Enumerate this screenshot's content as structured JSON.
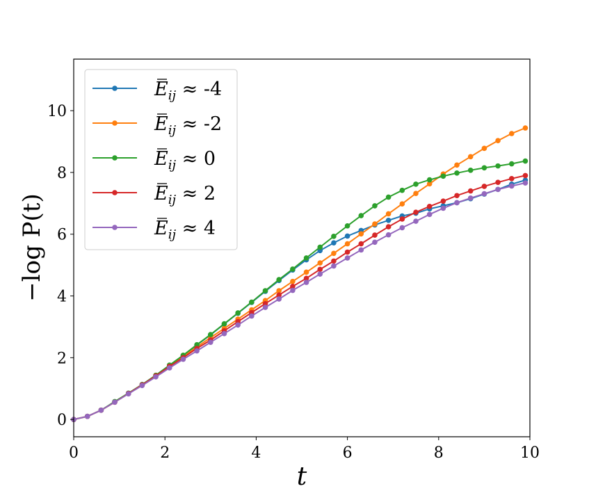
{
  "chart_data": {
    "type": "line",
    "title": "",
    "xlabel": "t",
    "ylabel": "−log P(t)",
    "xlim": [
      0,
      10
    ],
    "ylim": [
      -0.56,
      11.67
    ],
    "xticks": [
      0,
      2,
      4,
      6,
      8,
      10
    ],
    "yticks": [
      0,
      2,
      4,
      6,
      8,
      10
    ],
    "grid": false,
    "legend_placement": "upper-left",
    "marker": "circle",
    "x": [
      0,
      0.3,
      0.6,
      0.9,
      1.2,
      1.5,
      1.8,
      2.1,
      2.4,
      2.7,
      3.0,
      3.3,
      3.6,
      3.9,
      4.2,
      4.5,
      4.8,
      5.1,
      5.4,
      5.7,
      6.0,
      6.3,
      6.6,
      6.9,
      7.2,
      7.5,
      7.8,
      8.1,
      8.4,
      8.7,
      9.0,
      9.3,
      9.6,
      9.9
    ],
    "series": [
      {
        "name": "Ē_ij ≈ -4",
        "base": "E",
        "sub": "ij",
        "suffix": " ≈ -4",
        "color": "#1f77b4",
        "values": [
          0,
          0.1,
          0.3,
          0.57,
          0.85,
          1.13,
          1.43,
          1.75,
          2.07,
          2.41,
          2.74,
          3.09,
          3.44,
          3.79,
          4.15,
          4.5,
          4.84,
          5.17,
          5.47,
          5.72,
          5.94,
          6.12,
          6.3,
          6.45,
          6.59,
          6.68,
          6.82,
          6.92,
          7.02,
          7.15,
          7.3,
          7.45,
          7.62,
          7.75
        ]
      },
      {
        "name": "Ē_ij ≈ -2",
        "base": "E",
        "sub": "ij",
        "suffix": " ≈ -2",
        "color": "#ff7f0e",
        "values": [
          0,
          0.1,
          0.3,
          0.56,
          0.84,
          1.12,
          1.43,
          1.73,
          2.03,
          2.35,
          2.65,
          2.95,
          3.25,
          3.55,
          3.85,
          4.17,
          4.47,
          4.77,
          5.07,
          5.38,
          5.69,
          6.01,
          6.33,
          6.66,
          6.98,
          7.32,
          7.63,
          7.95,
          8.24,
          8.51,
          8.78,
          9.03,
          9.26,
          9.44
        ]
      },
      {
        "name": "Ē_ij ≈ 0",
        "base": "E",
        "sub": "ij",
        "suffix": " ≈ 0",
        "color": "#2ca02c",
        "values": [
          0,
          0.1,
          0.3,
          0.58,
          0.85,
          1.13,
          1.43,
          1.76,
          2.08,
          2.42,
          2.75,
          3.1,
          3.45,
          3.8,
          4.17,
          4.53,
          4.87,
          5.23,
          5.58,
          5.93,
          6.27,
          6.6,
          6.92,
          7.2,
          7.42,
          7.62,
          7.76,
          7.88,
          7.98,
          8.07,
          8.15,
          8.21,
          8.28,
          8.37
        ]
      },
      {
        "name": "Ē_ij ≈ 2",
        "base": "E",
        "sub": "ij",
        "suffix": " ≈ 2",
        "color": "#d62728",
        "values": [
          0,
          0.1,
          0.3,
          0.56,
          0.84,
          1.12,
          1.41,
          1.72,
          2.0,
          2.3,
          2.57,
          2.87,
          3.17,
          3.46,
          3.75,
          4.03,
          4.31,
          4.57,
          4.86,
          5.13,
          5.42,
          5.69,
          5.97,
          6.24,
          6.49,
          6.71,
          6.9,
          7.07,
          7.25,
          7.4,
          7.55,
          7.68,
          7.8,
          7.9
        ]
      },
      {
        "name": "Ē_ij ≈ 4",
        "base": "E",
        "sub": "ij",
        "suffix": " ≈ 4",
        "color": "#9467bd",
        "values": [
          0,
          0.1,
          0.3,
          0.56,
          0.83,
          1.1,
          1.38,
          1.67,
          1.95,
          2.22,
          2.5,
          2.78,
          3.06,
          3.35,
          3.63,
          3.9,
          4.18,
          4.44,
          4.71,
          4.97,
          5.23,
          5.49,
          5.74,
          5.98,
          6.21,
          6.42,
          6.64,
          6.84,
          7.02,
          7.17,
          7.31,
          7.45,
          7.56,
          7.66
        ]
      }
    ]
  }
}
